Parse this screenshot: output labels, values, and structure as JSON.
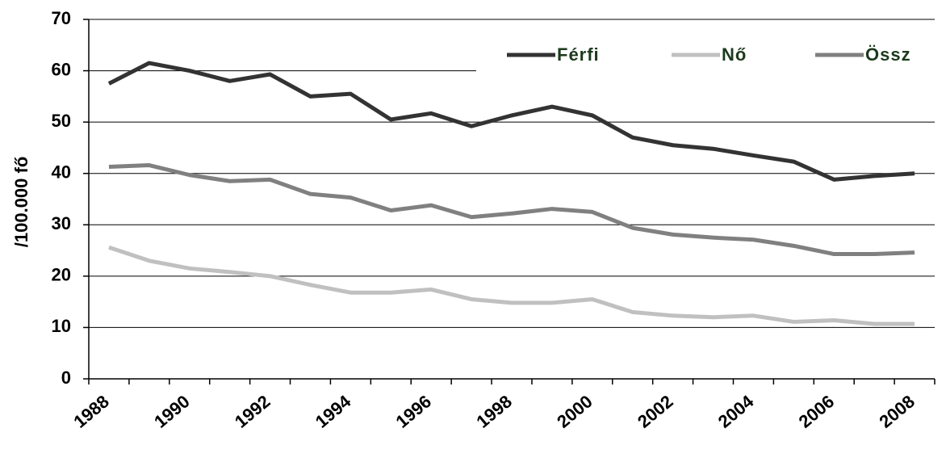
{
  "chart_data": {
    "type": "line",
    "y_label": "/100.000 fő",
    "categories": [
      "1988",
      null,
      "1990",
      null,
      "1992",
      null,
      "1994",
      null,
      "1996",
      null,
      "1998",
      null,
      "2000",
      null,
      "2002",
      null,
      "2004",
      null,
      "2006",
      null,
      "2008"
    ],
    "series": [
      {
        "name": "Férfi",
        "color": "#333333",
        "values": [
          57.5,
          61.5,
          60,
          58,
          59.3,
          55,
          55.5,
          50.5,
          51.7,
          49.2,
          51.3,
          53,
          51.3,
          47,
          45.5,
          44.8,
          43.5,
          42.3,
          38.8,
          39.5,
          40
        ]
      },
      {
        "name": "Nő",
        "color": "#c0c0c0",
        "values": [
          25.6,
          23,
          21.5,
          20.8,
          20,
          18.3,
          16.8,
          16.8,
          17.4,
          15.5,
          14.8,
          14.8,
          15.5,
          13,
          12.3,
          12,
          12.3,
          11.1,
          11.4,
          10.7,
          10.7
        ]
      },
      {
        "name": "Össz",
        "color": "#808080",
        "values": [
          41.3,
          41.6,
          39.7,
          38.5,
          38.8,
          36,
          35.3,
          32.8,
          33.8,
          31.5,
          32.2,
          33.1,
          32.5,
          29.4,
          28.1,
          27.5,
          27.1,
          25.9,
          24.3,
          24.3,
          24.6
        ]
      }
    ],
    "ylim": [
      0,
      70
    ],
    "yticks": [
      0,
      10,
      20,
      30,
      40,
      50,
      60,
      70
    ],
    "grid": true,
    "legend": "top-right"
  }
}
